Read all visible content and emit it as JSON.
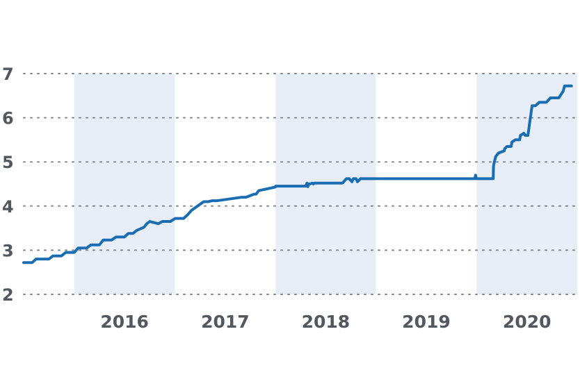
{
  "chart_data": {
    "type": "line",
    "title": "",
    "xlabel": "",
    "ylabel": "",
    "x_range": [
      "2015-07-01",
      "2020-12-31"
    ],
    "ylim": [
      2,
      7
    ],
    "y_ticks": [
      "2",
      "3",
      "4",
      "5",
      "6",
      "7"
    ],
    "x_ticks": [
      "2016",
      "2017",
      "2018",
      "2019",
      "2020"
    ],
    "shaded_years": [
      "2016",
      "2018",
      "2020"
    ],
    "grid": true,
    "grid_style": "dotted",
    "line_color": "#1a6cb3",
    "band_color": "#e7eef8",
    "series": [
      {
        "x": [
          "2015-07-01",
          "2015-08-01",
          "2015-08-15",
          "2015-10-01",
          "2015-10-15",
          "2015-11-15",
          "2015-12-01",
          "2016-01-01",
          "2016-01-15",
          "2016-02-15",
          "2016-03-01",
          "2016-04-01",
          "2016-04-15",
          "2016-05-15",
          "2016-06-01",
          "2016-07-01",
          "2016-07-15",
          "2016-08-01",
          "2016-08-15",
          "2016-09-10",
          "2016-09-20",
          "2016-10-01",
          "2016-11-01",
          "2016-11-15",
          "2016-12-15",
          "2017-01-01",
          "2017-02-01",
          "2017-02-15",
          "2017-03-01",
          "2017-04-15",
          "2017-05-01",
          "2017-05-15",
          "2017-06-01",
          "2017-09-01",
          "2017-09-15",
          "2017-10-15",
          "2017-10-22",
          "2017-11-01",
          "2017-12-31",
          "2018-01-01",
          "2018-04-20",
          "2018-04-25",
          "2018-04-28",
          "2018-05-01",
          "2018-05-05",
          "2018-05-15",
          "2018-05-18",
          "2018-05-22",
          "2018-06-01",
          "2018-06-20",
          "2018-09-01",
          "2018-09-15",
          "2018-09-25",
          "2018-10-05",
          "2018-10-10",
          "2018-10-20",
          "2018-10-25",
          "2018-11-05",
          "2019-12-25",
          "2019-12-28",
          "2019-12-31",
          "2020-01-01",
          "2020-03-01",
          "2020-03-02",
          "2020-03-05",
          "2020-03-10",
          "2020-03-20",
          "2020-04-10",
          "2020-04-12",
          "2020-04-20",
          "2020-05-05",
          "2020-05-08",
          "2020-05-20",
          "2020-06-05",
          "2020-06-08",
          "2020-06-20",
          "2020-06-25",
          "2020-07-05",
          "2020-07-20",
          "2020-08-01",
          "2020-08-10",
          "2020-08-15",
          "2020-09-10",
          "2020-09-25",
          "2020-10-25",
          "2020-11-10",
          "2020-11-15",
          "2020-12-10"
        ],
        "values": [
          2.72,
          2.72,
          2.8,
          2.8,
          2.87,
          2.87,
          2.95,
          2.95,
          3.05,
          3.05,
          3.12,
          3.12,
          3.23,
          3.23,
          3.3,
          3.3,
          3.38,
          3.38,
          3.45,
          3.52,
          3.6,
          3.65,
          3.6,
          3.65,
          3.65,
          3.72,
          3.72,
          3.8,
          3.9,
          4.1,
          4.1,
          4.12,
          4.12,
          4.2,
          4.2,
          4.27,
          4.27,
          4.35,
          4.43,
          4.45,
          4.45,
          4.52,
          4.44,
          4.5,
          4.5,
          4.52,
          4.5,
          4.52,
          4.52,
          4.52,
          4.52,
          4.62,
          4.62,
          4.55,
          4.62,
          4.62,
          4.55,
          4.62,
          4.62,
          4.7,
          4.62,
          4.62,
          4.62,
          4.9,
          5.0,
          5.12,
          5.2,
          5.25,
          5.3,
          5.35,
          5.35,
          5.45,
          5.5,
          5.5,
          5.6,
          5.65,
          5.6,
          5.6,
          6.27,
          6.27,
          6.32,
          6.35,
          6.35,
          6.45,
          6.45,
          6.6,
          6.72,
          6.72
        ]
      }
    ]
  }
}
